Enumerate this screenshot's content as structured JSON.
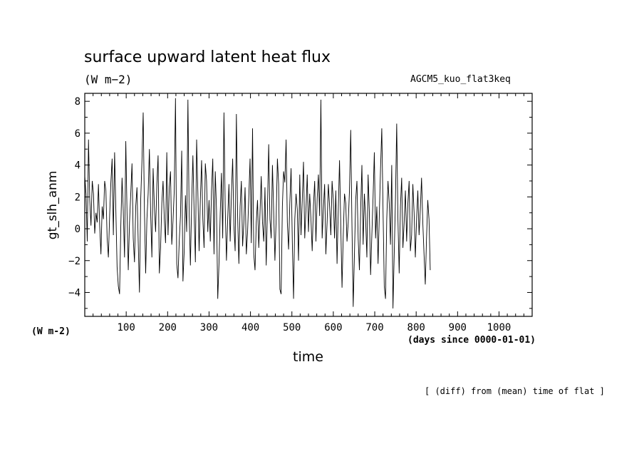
{
  "header": {
    "title": "surface upward latent heat flux",
    "units": "(W m−2)",
    "run_name": "AGCM5_kuo_flat3keq"
  },
  "axes": {
    "x_units_left": "(W m-2)",
    "x_units_right": "(days since 0000-01-01)",
    "x_label": "time",
    "y_label": "gt_slh_anm"
  },
  "footer": "[ (diff) from (mean) time of flat ]",
  "chart_data": {
    "type": "line",
    "title": "surface upward latent heat flux",
    "xlabel": "time",
    "ylabel": "gt_slh_anm",
    "xlim": [
      0,
      1080
    ],
    "ylim": [
      -5.5,
      8.5
    ],
    "x_ticks": [
      100,
      200,
      300,
      400,
      500,
      600,
      700,
      800,
      900,
      1000
    ],
    "y_ticks": [
      -4,
      -2,
      0,
      2,
      4,
      6,
      8
    ],
    "grid": false,
    "series": [
      {
        "x_start": 0,
        "x_step": 3,
        "color": "#000000",
        "values": [
          3.3,
          2.2,
          -0.8,
          5.6,
          1.8,
          0.2,
          3.0,
          2.2,
          -0.3,
          1.0,
          0.4,
          2.8,
          0.2,
          -1.6,
          1.4,
          0.6,
          3.0,
          2.4,
          -0.6,
          -1.8,
          0.8,
          2.9,
          4.4,
          -0.4,
          4.8,
          1.2,
          -2.4,
          -3.6,
          -4.1,
          0.2,
          3.2,
          1.1,
          -1.8,
          5.5,
          1.0,
          -2.6,
          0.4,
          2.2,
          4.1,
          -0.6,
          -2.1,
          1.4,
          2.6,
          -0.8,
          -4.0,
          1.8,
          4.2,
          7.3,
          1.2,
          -2.8,
          0.6,
          2.2,
          5.0,
          1.0,
          -1.8,
          3.8,
          1.4,
          -0.2,
          2.8,
          4.6,
          -2.8,
          -1.2,
          1.6,
          3.0,
          0.6,
          -0.9,
          4.8,
          -0.4,
          2.6,
          3.6,
          -1.0,
          0.5,
          2.4,
          8.2,
          -2.2,
          -3.1,
          -0.8,
          0.8,
          4.9,
          -3.3,
          -1.4,
          2.1,
          -0.2,
          8.1,
          0.9,
          -2.3,
          1.6,
          4.6,
          1.0,
          -2.1,
          5.6,
          2.3,
          -1.4,
          1.8,
          4.3,
          0.6,
          -1.2,
          4.1,
          3.0,
          -0.2,
          1.8,
          -0.8,
          2.4,
          4.4,
          -1.6,
          3.6,
          1.2,
          -4.4,
          -2.2,
          1.0,
          3.5,
          -0.6,
          7.3,
          1.4,
          -2.0,
          0.6,
          2.8,
          -0.8,
          2.2,
          4.4,
          0.2,
          -1.4,
          7.2,
          0.8,
          -2.2,
          1.4,
          3.0,
          -1.1,
          0.4,
          2.6,
          -1.6,
          -0.2,
          2.0,
          4.4,
          -0.9,
          6.3,
          -1.6,
          -2.6,
          0.4,
          1.8,
          -1.2,
          1.0,
          3.3,
          0.4,
          -0.8,
          2.6,
          -2.3,
          1.2,
          5.3,
          0.6,
          -0.6,
          4.0,
          1.1,
          -2.0,
          0.6,
          4.4,
          2.8,
          -3.8,
          -4.1,
          1.4,
          3.6,
          2.9,
          5.6,
          0.4,
          -1.3,
          1.6,
          3.8,
          -0.8,
          -4.4,
          0.6,
          2.2,
          1.2,
          -2.0,
          3.4,
          -0.4,
          1.8,
          4.2,
          -0.6,
          1.2,
          3.4,
          -0.2,
          2.2,
          0.6,
          -1.4,
          1.4,
          3.0,
          -0.8,
          1.9,
          3.4,
          0.8,
          8.1,
          -0.6,
          1.2,
          2.8,
          -1.6,
          0.4,
          2.8,
          1.4,
          -0.4,
          3.0,
          1.8,
          -0.6,
          2.4,
          -2.2,
          1.2,
          4.3,
          0.2,
          -3.7,
          -0.4,
          2.2,
          1.6,
          -0.8,
          0.4,
          2.4,
          6.2,
          0.2,
          -4.9,
          -1.6,
          1.8,
          3.0,
          -0.6,
          -2.6,
          1.2,
          4.0,
          -1.0,
          2.2,
          0.6,
          -1.8,
          3.4,
          1.0,
          -2.9,
          -0.4,
          2.0,
          4.8,
          -0.6,
          1.4,
          -2.2,
          0.8,
          3.8,
          6.3,
          1.2,
          -3.6,
          -4.4,
          0.6,
          3.0,
          1.6,
          -1.0,
          4.0,
          -5.0,
          -1.6,
          1.8,
          6.6,
          0.6,
          -2.8,
          1.4,
          3.2,
          -1.2,
          0.4,
          2.4,
          -0.8,
          1.6,
          3.0,
          -1.4,
          -0.4,
          2.8,
          1.0,
          -1.8,
          0.6,
          2.4,
          -0.4,
          1.2,
          3.2,
          0.4,
          -1.6,
          -3.5,
          -0.6,
          1.8,
          0.6,
          -2.6
        ]
      }
    ]
  }
}
